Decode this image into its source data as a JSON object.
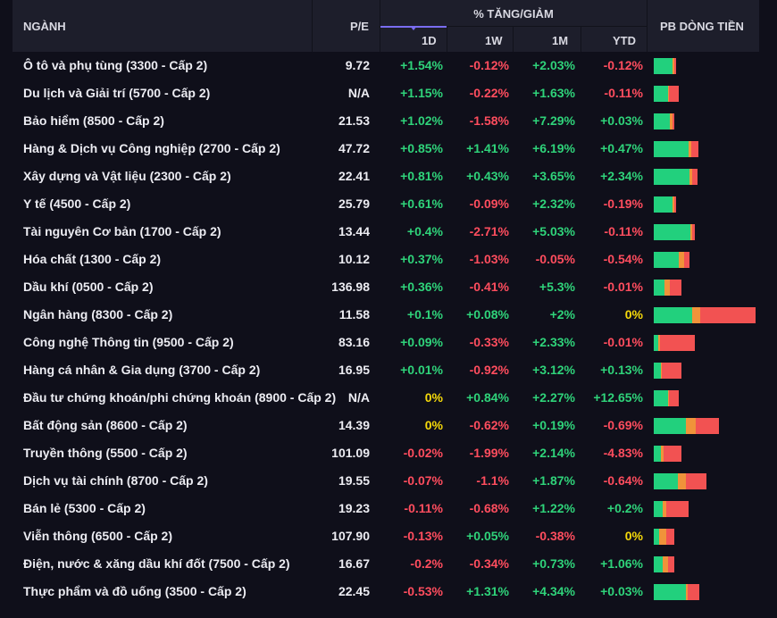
{
  "header": {
    "nganh": "NGÀNH",
    "pe": "P/E",
    "group": "% TĂNG/GIẢM",
    "d1": "1D",
    "w1": "1W",
    "m1": "1M",
    "ytd": "YTD",
    "pb": "PB DÒNG TIỀN"
  },
  "colors": {
    "up": "#2fd37a",
    "down": "#ff4d5e",
    "flat": "#f5d90a",
    "bar_green": "#22d07d",
    "bar_orange": "#f0933a",
    "bar_red": "#f25252"
  },
  "rows": [
    {
      "name": "Ô tô và phụ tùng (3300 - Cấp 2)",
      "pe": "9.72",
      "d1": "+1.54%",
      "w1": "-0.12%",
      "m1": "+2.03%",
      "ytd": "-0.12%",
      "flow": [
        0.85,
        0.05,
        0.1
      ],
      "flow_scale": 0.22
    },
    {
      "name": "Du lịch và Giải trí (5700 - Cấp 2)",
      "pe": "N/A",
      "d1": "+1.15%",
      "w1": "-0.22%",
      "m1": "+1.63%",
      "ytd": "-0.11%",
      "flow": [
        0.55,
        0.05,
        0.4
      ],
      "flow_scale": 0.25
    },
    {
      "name": "Bảo hiểm (8500 - Cấp 2)",
      "pe": "21.53",
      "d1": "+1.02%",
      "w1": "-1.58%",
      "m1": "+7.29%",
      "ytd": "+0.03%",
      "flow": [
        0.8,
        0.1,
        0.1
      ],
      "flow_scale": 0.2
    },
    {
      "name": "Hàng & Dịch vụ Công nghiệp (2700 - Cấp 2)",
      "pe": "47.72",
      "d1": "+0.85%",
      "w1": "+1.41%",
      "m1": "+6.19%",
      "ytd": "+0.47%",
      "flow": [
        0.78,
        0.06,
        0.16
      ],
      "flow_scale": 0.44
    },
    {
      "name": "Xây dựng và Vật liệu (2300 - Cấp 2)",
      "pe": "22.41",
      "d1": "+0.81%",
      "w1": "+0.43%",
      "m1": "+3.65%",
      "ytd": "+2.34%",
      "flow": [
        0.82,
        0.05,
        0.13
      ],
      "flow_scale": 0.43
    },
    {
      "name": "Y tế (4500 - Cấp 2)",
      "pe": "25.79",
      "d1": "+0.61%",
      "w1": "-0.09%",
      "m1": "+2.32%",
      "ytd": "-0.19%",
      "flow": [
        0.85,
        0.05,
        0.1
      ],
      "flow_scale": 0.22
    },
    {
      "name": "Tài nguyên Cơ bản (1700 - Cấp 2)",
      "pe": "13.44",
      "d1": "+0.4%",
      "w1": "-2.71%",
      "m1": "+5.03%",
      "ytd": "-0.11%",
      "flow": [
        0.9,
        0.05,
        0.05
      ],
      "flow_scale": 0.4
    },
    {
      "name": "Hóa chất (1300 - Cấp 2)",
      "pe": "10.12",
      "d1": "+0.37%",
      "w1": "-1.03%",
      "m1": "-0.05%",
      "ytd": "-0.54%",
      "flow": [
        0.7,
        0.15,
        0.15
      ],
      "flow_scale": 0.35
    },
    {
      "name": "Dầu khí (0500 - Cấp 2)",
      "pe": "136.98",
      "d1": "+0.36%",
      "w1": "-0.41%",
      "m1": "+5.3%",
      "ytd": "-0.01%",
      "flow": [
        0.4,
        0.2,
        0.4
      ],
      "flow_scale": 0.27
    },
    {
      "name": "Ngân hàng (8300 - Cấp 2)",
      "pe": "11.58",
      "d1": "+0.1%",
      "w1": "+0.08%",
      "m1": "+2%",
      "ytd": "0%",
      "flow": [
        0.38,
        0.08,
        0.54
      ],
      "flow_scale": 1.0
    },
    {
      "name": "Công nghệ Thông tin (9500 - Cấp 2)",
      "pe": "83.16",
      "d1": "+0.09%",
      "w1": "-0.33%",
      "m1": "+2.33%",
      "ytd": "-0.01%",
      "flow": [
        0.1,
        0.05,
        0.85
      ],
      "flow_scale": 0.4
    },
    {
      "name": "Hàng cá nhân & Gia dụng (3700 - Cấp 2)",
      "pe": "16.95",
      "d1": "+0.01%",
      "w1": "-0.92%",
      "m1": "+3.12%",
      "ytd": "+0.13%",
      "flow": [
        0.25,
        0.05,
        0.7
      ],
      "flow_scale": 0.27
    },
    {
      "name": "Đầu tư chứng khoán/phi chứng khoán (8900 - Cấp 2)",
      "pe": "N/A",
      "d1": "0%",
      "w1": "+0.84%",
      "m1": "+2.27%",
      "ytd": "+12.65%",
      "flow": [
        0.55,
        0.05,
        0.4
      ],
      "flow_scale": 0.25
    },
    {
      "name": "Bất động sản (8600 - Cấp 2)",
      "pe": "14.39",
      "d1": "0%",
      "w1": "-0.62%",
      "m1": "+0.19%",
      "ytd": "-0.69%",
      "flow": [
        0.5,
        0.15,
        0.35
      ],
      "flow_scale": 0.64
    },
    {
      "name": "Truyền thông (5500 - Cấp 2)",
      "pe": "101.09",
      "d1": "-0.02%",
      "w1": "-1.99%",
      "m1": "+2.14%",
      "ytd": "-4.83%",
      "flow": [
        0.25,
        0.1,
        0.65
      ],
      "flow_scale": 0.27
    },
    {
      "name": "Dịch vụ tài chính (8700 - Cấp 2)",
      "pe": "19.55",
      "d1": "-0.07%",
      "w1": "-1.1%",
      "m1": "+1.87%",
      "ytd": "-0.64%",
      "flow": [
        0.45,
        0.15,
        0.4
      ],
      "flow_scale": 0.52
    },
    {
      "name": "Bán lẻ (5300 - Cấp 2)",
      "pe": "19.23",
      "d1": "-0.11%",
      "w1": "-0.68%",
      "m1": "+1.22%",
      "ytd": "+0.2%",
      "flow": [
        0.25,
        0.1,
        0.65
      ],
      "flow_scale": 0.34
    },
    {
      "name": "Viễn thông (6500 - Cấp 2)",
      "pe": "107.90",
      "d1": "-0.13%",
      "w1": "+0.05%",
      "m1": "-0.38%",
      "ytd": "0%",
      "flow": [
        0.25,
        0.35,
        0.4
      ],
      "flow_scale": 0.2
    },
    {
      "name": "Điện, nước & xăng dầu khí đốt (7500 - Cấp 2)",
      "pe": "16.67",
      "d1": "-0.2%",
      "w1": "-0.34%",
      "m1": "+0.73%",
      "ytd": "+1.06%",
      "flow": [
        0.45,
        0.25,
        0.3
      ],
      "flow_scale": 0.2
    },
    {
      "name": "Thực phẩm và đồ uống (3500 - Cấp 2)",
      "pe": "22.45",
      "d1": "-0.53%",
      "w1": "+1.31%",
      "m1": "+4.34%",
      "ytd": "+0.03%",
      "flow": [
        0.7,
        0.05,
        0.25
      ],
      "flow_scale": 0.45
    }
  ]
}
